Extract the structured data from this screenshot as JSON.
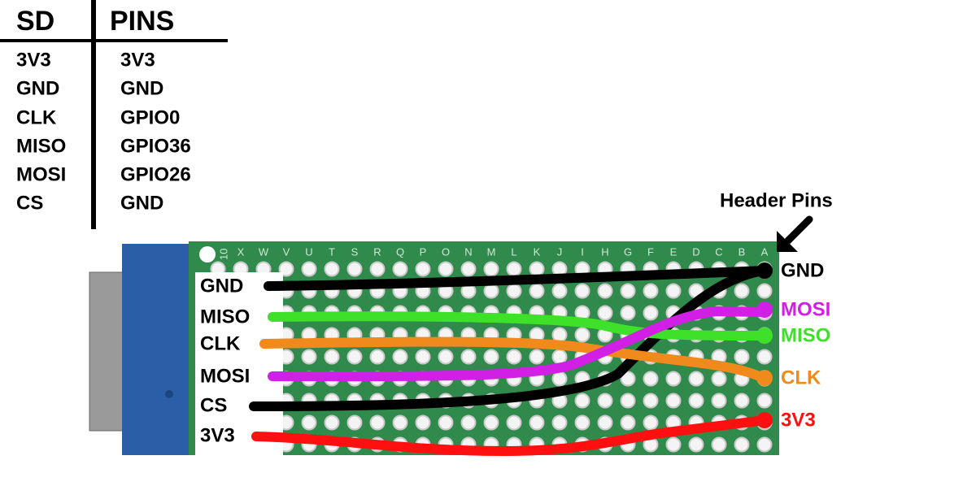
{
  "table": {
    "headers": [
      "SD",
      "PINS"
    ],
    "rows": [
      [
        "3V3",
        "3V3"
      ],
      [
        "GND",
        "GND"
      ],
      [
        "CLK",
        "GPIO0"
      ],
      [
        "MISO",
        "GPIO36"
      ],
      [
        "MOSI",
        "GPIO26"
      ],
      [
        "CS",
        "GND"
      ]
    ]
  },
  "annotation": "Header Pins",
  "board": {
    "row_number": "10",
    "column_letters": [
      "X",
      "W",
      "V",
      "U",
      "T",
      "S",
      "R",
      "Q",
      "P",
      "O",
      "N",
      "M",
      "L",
      "K",
      "J",
      "I",
      "H",
      "G",
      "F",
      "E",
      "D",
      "C",
      "B",
      "A"
    ]
  },
  "left_labels": [
    "GND",
    "MISO",
    "CLK",
    "MOSI",
    "CS",
    "3V3"
  ],
  "right_labels": [
    "GND",
    "MOSI",
    "MISO",
    "CLK",
    "3V3"
  ]
}
